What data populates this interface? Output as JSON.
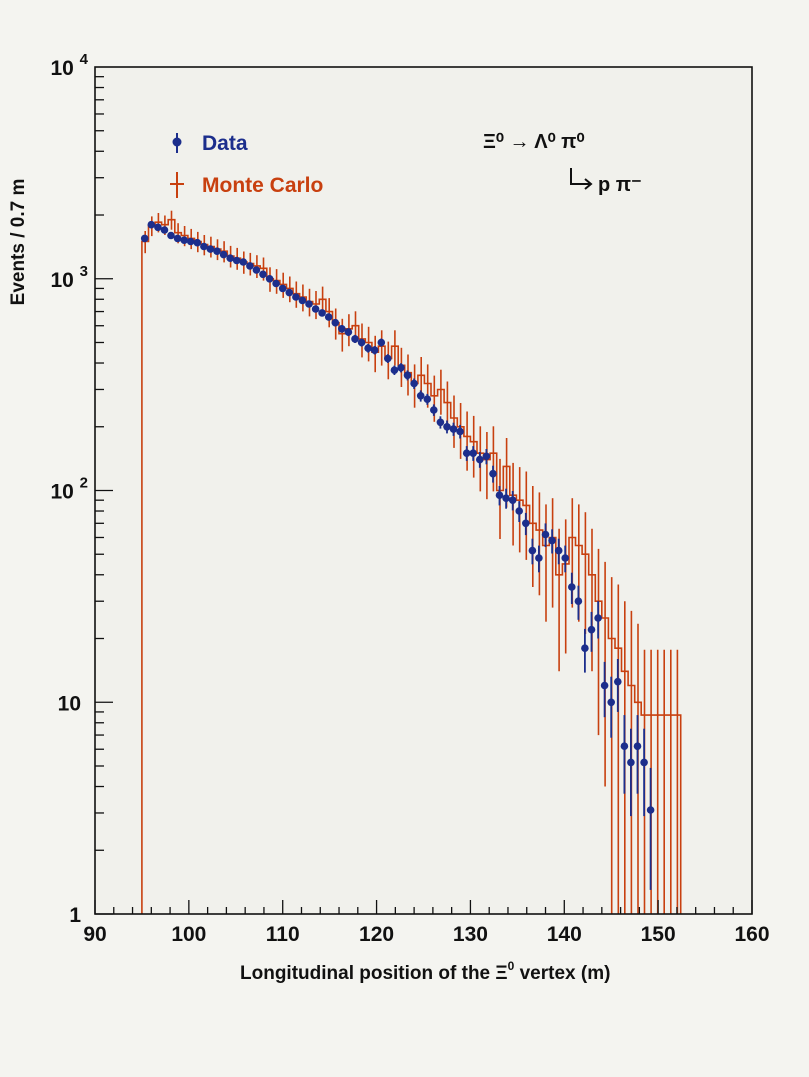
{
  "chart_data": {
    "type": "histogram",
    "xlabel_prefix": "Longitudinal position of the ",
    "xlabel_symbol": "Ξ",
    "xlabel_sup": "0",
    "xlabel_suffix": " vertex (m)",
    "ylabel": "Events / 0.7 m",
    "xlim": [
      90,
      160
    ],
    "ylim": [
      1,
      10000
    ],
    "yscale": "log",
    "x_ticks": [
      {
        "value": 90,
        "label": "90"
      },
      {
        "value": 100,
        "label": "100"
      },
      {
        "value": 110,
        "label": "110"
      },
      {
        "value": 120,
        "label": "120"
      },
      {
        "value": 130,
        "label": "130"
      },
      {
        "value": 140,
        "label": "140"
      },
      {
        "value": 150,
        "label": "150"
      },
      {
        "value": 160,
        "label": "160"
      }
    ],
    "y_ticks": [
      {
        "value": 1,
        "base": "1",
        "exp": ""
      },
      {
        "value": 10,
        "base": "10",
        "exp": ""
      },
      {
        "value": 100,
        "base": "10",
        "exp": "2"
      },
      {
        "value": 1000,
        "base": "10",
        "exp": "3"
      },
      {
        "value": 10000,
        "base": "10",
        "exp": "4"
      }
    ],
    "bin_width": 0.7,
    "mc_bin_start": 95.0,
    "legend_placement": "top-left",
    "grid": false,
    "reaction": {
      "line1": "Ξ⁰ → Λ⁰ π⁰",
      "line2": "p π⁻"
    },
    "series": [
      {
        "name": "Data",
        "color": "#1c2e8c",
        "style": "points-with-errors",
        "x": [
          95.3,
          96.0,
          96.7,
          97.4,
          98.1,
          98.8,
          99.5,
          100.2,
          100.9,
          101.6,
          102.3,
          103.0,
          103.7,
          104.4,
          105.1,
          105.8,
          106.5,
          107.2,
          107.9,
          108.6,
          109.3,
          110.0,
          110.7,
          111.4,
          112.1,
          112.8,
          113.5,
          114.2,
          114.9,
          115.6,
          116.3,
          117.0,
          117.7,
          118.4,
          119.1,
          119.8,
          120.5,
          121.2,
          121.9,
          122.6,
          123.3,
          124.0,
          124.7,
          125.4,
          126.1,
          126.8,
          127.5,
          128.2,
          128.9,
          129.6,
          130.3,
          131.0,
          131.7,
          132.4,
          133.1,
          133.8,
          134.5,
          135.2,
          135.9,
          136.6,
          137.3,
          138.0,
          138.7,
          139.4,
          140.1,
          140.8,
          141.5,
          142.2,
          142.9,
          143.6,
          144.3,
          145.0,
          145.7,
          146.4,
          147.1,
          147.8,
          148.5,
          149.2
        ],
        "y": [
          1550,
          1800,
          1750,
          1700,
          1600,
          1550,
          1520,
          1500,
          1480,
          1420,
          1380,
          1350,
          1300,
          1250,
          1220,
          1200,
          1150,
          1100,
          1050,
          1000,
          950,
          900,
          860,
          820,
          790,
          760,
          720,
          690,
          660,
          620,
          580,
          560,
          520,
          500,
          470,
          460,
          500,
          420,
          370,
          380,
          350,
          320,
          280,
          270,
          240,
          210,
          200,
          195,
          190,
          150,
          150,
          140,
          145,
          120,
          95,
          92,
          90,
          80,
          70,
          52,
          48,
          62,
          58,
          52,
          48,
          35,
          30,
          18,
          22,
          25,
          12,
          10,
          12.5,
          6.2,
          5.2,
          6.2,
          5.2,
          3.1
        ],
        "err": [
          40,
          42,
          42,
          41,
          40,
          39,
          39,
          39,
          38,
          38,
          37,
          37,
          36,
          35,
          35,
          35,
          34,
          33,
          32,
          32,
          31,
          30,
          29,
          29,
          28,
          28,
          27,
          26,
          26,
          25,
          24,
          24,
          23,
          22,
          22,
          21,
          22,
          20,
          19,
          19,
          19,
          18,
          17,
          16,
          15,
          14,
          14,
          14,
          14,
          12,
          12,
          12,
          12,
          11,
          10,
          10,
          9.5,
          9,
          8.4,
          7.2,
          6.9,
          7.9,
          7.6,
          7.2,
          6.9,
          5.9,
          5.5,
          4.2,
          4.7,
          5,
          3.5,
          3.2,
          3.5,
          2.5,
          2.3,
          2.5,
          2.3,
          1.8
        ]
      },
      {
        "name": "Monte Carlo",
        "color": "#c8400f",
        "style": "histogram-with-errors",
        "values": [
          1500,
          1780,
          1850,
          1800,
          1900,
          1650,
          1600,
          1550,
          1500,
          1450,
          1420,
          1380,
          1350,
          1280,
          1250,
          1200,
          1180,
          1150,
          1120,
          1000,
          980,
          940,
          900,
          850,
          820,
          780,
          760,
          800,
          700,
          620,
          550,
          580,
          600,
          520,
          500,
          450,
          480,
          420,
          480,
          390,
          360,
          320,
          350,
          320,
          280,
          300,
          260,
          220,
          200,
          180,
          170,
          150,
          140,
          150,
          100,
          130,
          95,
          90,
          85,
          70,
          65,
          55,
          60,
          40,
          45,
          60,
          55,
          50,
          40,
          30,
          25,
          20,
          18,
          14,
          12,
          10,
          8.7,
          8.7,
          8.7,
          8.7,
          8.7,
          8.7
        ],
        "err": [
          180,
          190,
          195,
          190,
          195,
          180,
          175,
          170,
          165,
          160,
          160,
          155,
          155,
          150,
          148,
          145,
          144,
          142,
          140,
          132,
          131,
          128,
          125,
          121,
          119,
          116,
          115,
          118,
          110,
          104,
          97,
          100,
          102,
          95,
          93,
          88,
          91,
          85,
          91,
          82,
          79,
          74,
          77,
          74,
          69,
          72,
          67,
          61,
          59,
          56,
          55,
          51,
          49,
          51,
          41,
          47,
          40,
          39,
          38,
          35,
          33,
          31,
          32,
          26,
          28,
          32,
          31,
          29,
          26,
          23,
          21,
          19,
          18,
          16,
          15,
          13.5,
          9,
          9,
          9,
          9,
          9,
          9
        ]
      }
    ]
  }
}
